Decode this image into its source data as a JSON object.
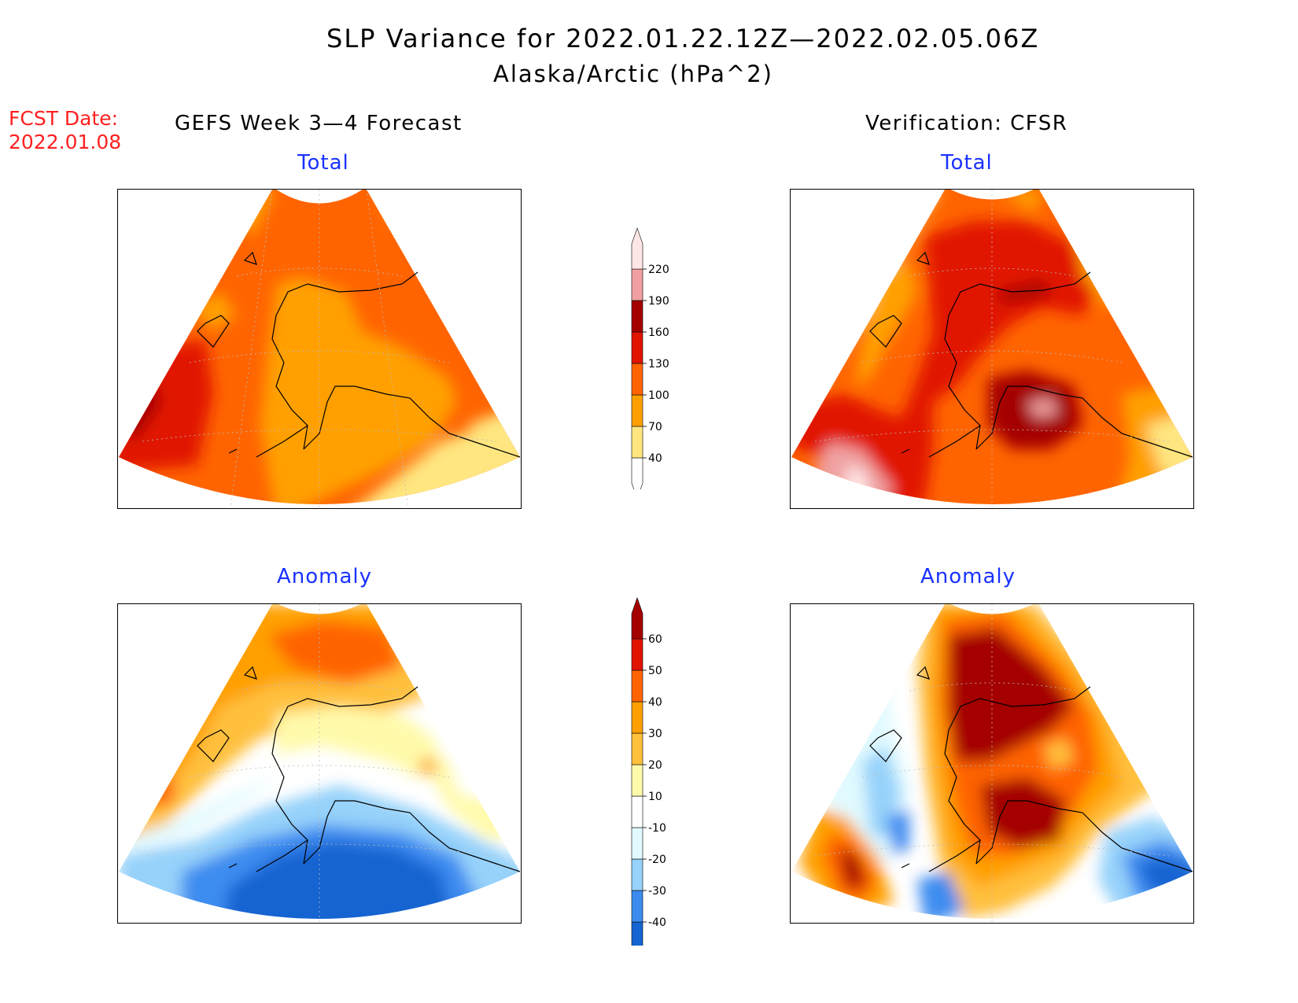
{
  "header": {
    "title": "SLP Variance for 2022.01.22.12Z—2022.02.05.06Z",
    "subtitle": "Alaska/Arctic (hPa^2)"
  },
  "forecast_date": {
    "label": "FCST Date:",
    "value": "2022.01.08"
  },
  "columns": {
    "left": "GEFS Week 3—4 Forecast",
    "right": "Verification: CFSR"
  },
  "panels": {
    "top_left": "Total",
    "top_right": "Total",
    "bottom_left": "Anomaly",
    "bottom_right": "Anomaly"
  },
  "colorbars": {
    "total": {
      "levels": [
        "40",
        "70",
        "100",
        "130",
        "160",
        "190",
        "220"
      ],
      "colors": [
        "#ffffff",
        "#ffe680",
        "#ffa000",
        "#ff6400",
        "#e11400",
        "#a50000",
        "#f0a0a0",
        "#ffe6e6"
      ]
    },
    "anomaly": {
      "levels": [
        "-40",
        "-30",
        "-20",
        "-10",
        "10",
        "20",
        "30",
        "40",
        "50",
        "60"
      ],
      "colors": [
        "#1464d2",
        "#3c8cf0",
        "#96d2fa",
        "#e1faff",
        "#ffffff",
        "#fffaaa",
        "#ffc03c",
        "#ffa000",
        "#ff6400",
        "#e11400",
        "#a50000"
      ]
    }
  }
}
